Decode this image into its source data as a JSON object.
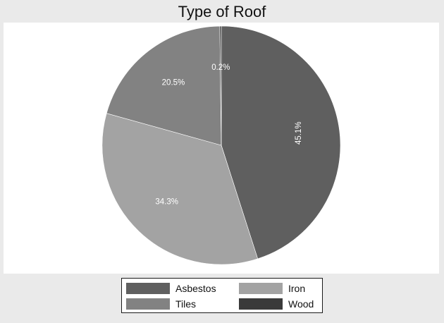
{
  "chart_data": {
    "type": "pie",
    "title": "Type of Roof",
    "slices": [
      {
        "label": "Asbestos",
        "value": 45.1,
        "display": "45.1%",
        "color": "#5f5f5f"
      },
      {
        "label": "Iron",
        "value": 34.3,
        "display": "34.3%",
        "color": "#a3a3a3"
      },
      {
        "label": "Tiles",
        "value": 20.5,
        "display": "20.5%",
        "color": "#828282"
      },
      {
        "label": "Wood",
        "value": 0.2,
        "display": "0.2%",
        "color": "#3a3a3a"
      }
    ],
    "legend": {
      "placement": "bottom",
      "order": [
        "Asbestos",
        "Iron",
        "Tiles",
        "Wood"
      ]
    }
  }
}
